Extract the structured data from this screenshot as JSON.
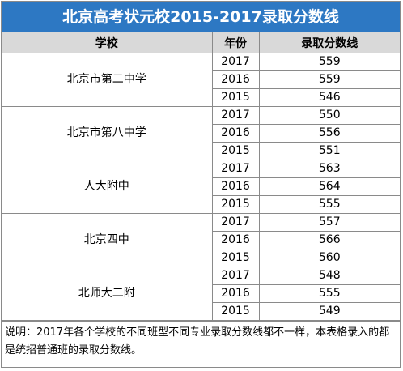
{
  "title": "北京高考状元校2015-2017录取分数线",
  "columns": {
    "school": "学校",
    "year": "年份",
    "score": "录取分数线"
  },
  "schools": [
    {
      "name": "北京市第二中学",
      "rows": [
        {
          "year": "2017",
          "score": "559"
        },
        {
          "year": "2016",
          "score": "559"
        },
        {
          "year": "2015",
          "score": "546"
        }
      ]
    },
    {
      "name": "北京市第八中学",
      "rows": [
        {
          "year": "2017",
          "score": "550"
        },
        {
          "year": "2016",
          "score": "556"
        },
        {
          "year": "2015",
          "score": "551"
        }
      ]
    },
    {
      "name": "人大附中",
      "rows": [
        {
          "year": "2017",
          "score": "563"
        },
        {
          "year": "2016",
          "score": "564"
        },
        {
          "year": "2015",
          "score": "555"
        }
      ]
    },
    {
      "name": "北京四中",
      "rows": [
        {
          "year": "2017",
          "score": "557"
        },
        {
          "year": "2016",
          "score": "566"
        },
        {
          "year": "2015",
          "score": "560"
        }
      ]
    },
    {
      "name": "北师大二附",
      "rows": [
        {
          "year": "2017",
          "score": "548"
        },
        {
          "year": "2016",
          "score": "555"
        },
        {
          "year": "2015",
          "score": "549"
        }
      ]
    }
  ],
  "note": "说明：2017年各个学校的不同班型不同专业录取分数线都不一样，本表格录入的都是统招普通班的录取分数线。",
  "colors": {
    "title_bg": "#2d78c3",
    "title_text": "#ffffff",
    "header_bg": "#d9d9d9",
    "border": "#8a8a8a"
  }
}
